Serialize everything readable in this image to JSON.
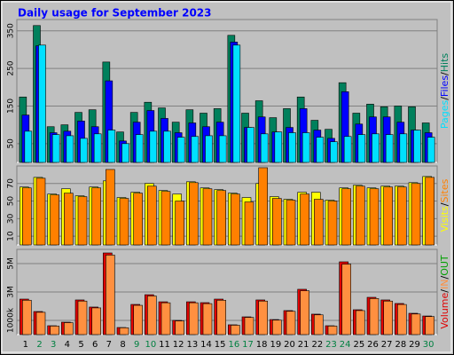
{
  "chart_data": [
    {
      "type": "bar",
      "title": "Daily usage for September 2023",
      "categories": [
        "1",
        "2",
        "3",
        "4",
        "5",
        "6",
        "7",
        "8",
        "9",
        "10",
        "11",
        "12",
        "13",
        "14",
        "15",
        "16",
        "17",
        "18",
        "19",
        "20",
        "21",
        "22",
        "23",
        "24",
        "25",
        "26",
        "27",
        "28",
        "29",
        "30"
      ],
      "category_colors": [
        "#000000",
        "#008040",
        "#008040",
        "#000000",
        "#000000",
        "#000000",
        "#000000",
        "#000000",
        "#008040",
        "#008040",
        "#000000",
        "#000000",
        "#000000",
        "#000000",
        "#000000",
        "#008040",
        "#008040",
        "#000000",
        "#000000",
        "#000000",
        "#000000",
        "#000000",
        "#008040",
        "#008040",
        "#000000",
        "#000000",
        "#000000",
        "#000000",
        "#000000",
        "#008040"
      ],
      "ylim": [
        0,
        380
      ],
      "yticks": [
        50,
        150,
        250,
        350
      ],
      "grid": true,
      "separator": "/",
      "legend_reversed": true,
      "series": [
        {
          "name": "Hits",
          "color": "#00805c",
          "values": [
            174,
            364,
            95,
            100,
            133,
            140,
            267,
            81,
            133,
            160,
            145,
            107,
            140,
            131,
            143,
            338,
            131,
            164,
            119,
            143,
            174,
            112,
            88,
            212,
            131,
            155,
            148,
            150,
            148,
            105
          ]
        },
        {
          "name": "Files",
          "color": "#0000ff",
          "values": [
            126,
            310,
            79,
            83,
            110,
            95,
            217,
            57,
            107,
            138,
            117,
            79,
            105,
            95,
            107,
            320,
            93,
            121,
            81,
            93,
            143,
            86,
            64,
            188,
            102,
            121,
            121,
            107,
            86,
            79
          ]
        },
        {
          "name": "Pages",
          "color": "#00e0ff",
          "values": [
            83,
            312,
            74,
            71,
            64,
            76,
            86,
            50,
            74,
            83,
            83,
            67,
            69,
            71,
            71,
            312,
            93,
            76,
            81,
            79,
            79,
            67,
            55,
            69,
            74,
            76,
            74,
            76,
            86,
            67
          ]
        }
      ]
    },
    {
      "type": "bar",
      "ylim": [
        0,
        90
      ],
      "yticks": [
        10,
        30,
        50,
        70
      ],
      "grid": true,
      "separator": "/",
      "legend_reversed": false,
      "series": [
        {
          "name": "Visits",
          "color": "#ffff00",
          "values": [
            66,
            77,
            58,
            64,
            56,
            66,
            73,
            54,
            60,
            70,
            62,
            58,
            72,
            65,
            63,
            59,
            54,
            70,
            55,
            52,
            60,
            60,
            51,
            65,
            68,
            65,
            67,
            67,
            71,
            78
          ]
        },
        {
          "name": "Sites",
          "color": "#ff8000",
          "values": [
            65,
            76,
            57,
            59,
            55,
            65,
            86,
            53,
            59,
            67,
            61,
            50,
            71,
            64,
            62,
            58,
            49,
            88,
            53,
            51,
            58,
            52,
            50,
            64,
            67,
            64,
            66,
            66,
            70,
            77
          ]
        }
      ]
    },
    {
      "type": "bar",
      "ylim": [
        0,
        6000
      ],
      "yticks": [
        {
          "value": 1000,
          "label": "1000k"
        },
        {
          "value": 3000,
          "label": "3M"
        },
        {
          "value": 5000,
          "label": "5M"
        }
      ],
      "grid": true,
      "separator": "/",
      "legend_reversed": false,
      "extra_legend": "OUT",
      "extra_legend_color": "#00a000",
      "series": [
        {
          "name": "Volume",
          "color": "#e00000",
          "values": [
            2500,
            1625,
            625,
            875,
            2440,
            1940,
            5750,
            500,
            2125,
            2810,
            2310,
            1000,
            2310,
            2250,
            2500,
            690,
            1250,
            2440,
            1060,
            1690,
            3190,
            1440,
            625,
            5125,
            1750,
            2625,
            2440,
            2190,
            1500,
            1310
          ]
        },
        {
          "name": "IN",
          "color": "#ff9040",
          "values": [
            2420,
            1570,
            600,
            840,
            2360,
            1880,
            5600,
            480,
            2060,
            2720,
            2240,
            960,
            2240,
            2180,
            2420,
            660,
            1210,
            2360,
            1020,
            1640,
            3090,
            1390,
            600,
            4960,
            1690,
            2540,
            2360,
            2120,
            1450,
            1270
          ]
        }
      ]
    }
  ]
}
